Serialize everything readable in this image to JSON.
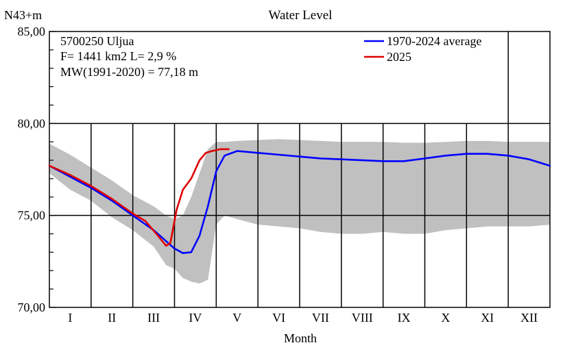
{
  "chart_data": {
    "type": "line",
    "title": "Water Level",
    "ylabel": "N43+m",
    "xlabel": "Month",
    "ylim": [
      70,
      85
    ],
    "yticks": [
      "70,00",
      "75,00",
      "80,00",
      "85,00"
    ],
    "ytick_values": [
      70,
      75,
      80,
      85
    ],
    "categories": [
      "I",
      "II",
      "III",
      "IV",
      "V",
      "VI",
      "VII",
      "VIII",
      "IX",
      "X",
      "XI",
      "XII"
    ],
    "info_lines": [
      "5700250 Uljua",
      "F=   1441 km2 L=  2,9 %",
      "MW(1991-2020) = 77,18 m"
    ],
    "legend_position": "top-right",
    "grid": true,
    "x_unit": "month (0 = start of January, 12 = end of December)",
    "series": [
      {
        "name": "1970-2024 average",
        "color": "#0000ff",
        "x": [
          0,
          0.5,
          1,
          1.5,
          2,
          2.5,
          2.8,
          3.0,
          3.2,
          3.4,
          3.6,
          3.8,
          4.0,
          4.2,
          4.5,
          5,
          5.5,
          6,
          6.5,
          7,
          7.5,
          8,
          8.5,
          9,
          9.5,
          10,
          10.5,
          11,
          11.5,
          12
        ],
        "y": [
          77.7,
          77.1,
          76.5,
          75.8,
          75.0,
          74.2,
          73.6,
          73.2,
          72.95,
          73.0,
          73.9,
          75.5,
          77.4,
          78.25,
          78.5,
          78.4,
          78.3,
          78.2,
          78.1,
          78.05,
          78.0,
          77.95,
          77.95,
          78.1,
          78.25,
          78.35,
          78.35,
          78.25,
          78.05,
          77.7
        ]
      },
      {
        "name": "2025",
        "color": "#e00000",
        "x": [
          0,
          0.5,
          1,
          1.5,
          2,
          2.3,
          2.6,
          2.8,
          2.9,
          3.05,
          3.2,
          3.4,
          3.6,
          3.75,
          3.9,
          4.1,
          4.3
        ],
        "y": [
          77.7,
          77.2,
          76.6,
          75.9,
          75.1,
          74.7,
          73.9,
          73.35,
          73.5,
          75.3,
          76.4,
          77.0,
          78.0,
          78.4,
          78.5,
          78.6,
          78.6
        ]
      }
    ],
    "band": {
      "color": "#c0c0c0",
      "x": [
        0,
        0.5,
        1,
        1.5,
        2,
        2.5,
        2.8,
        3.0,
        3.2,
        3.4,
        3.6,
        3.8,
        4.0,
        4.2,
        4.5,
        5,
        5.5,
        6,
        6.5,
        7,
        7.5,
        8,
        8.5,
        9,
        9.5,
        10,
        10.5,
        11,
        11.5,
        12
      ],
      "low": [
        77.3,
        76.4,
        75.8,
        74.9,
        74.2,
        73.3,
        72.3,
        72.1,
        71.6,
        71.4,
        71.3,
        71.5,
        74.5,
        75.0,
        74.8,
        74.5,
        74.4,
        74.3,
        74.1,
        74.0,
        74.0,
        74.1,
        74.0,
        74.0,
        74.2,
        74.3,
        74.4,
        74.4,
        74.4,
        74.5
      ],
      "high": [
        78.9,
        78.3,
        77.6,
        76.9,
        76.1,
        75.5,
        75.0,
        74.8,
        75.0,
        76.0,
        77.3,
        78.6,
        79.0,
        79.0,
        79.05,
        79.1,
        79.15,
        79.1,
        79.05,
        79.0,
        79.0,
        79.0,
        78.95,
        78.95,
        79.0,
        79.05,
        79.05,
        79.0,
        79.0,
        79.0
      ]
    }
  }
}
